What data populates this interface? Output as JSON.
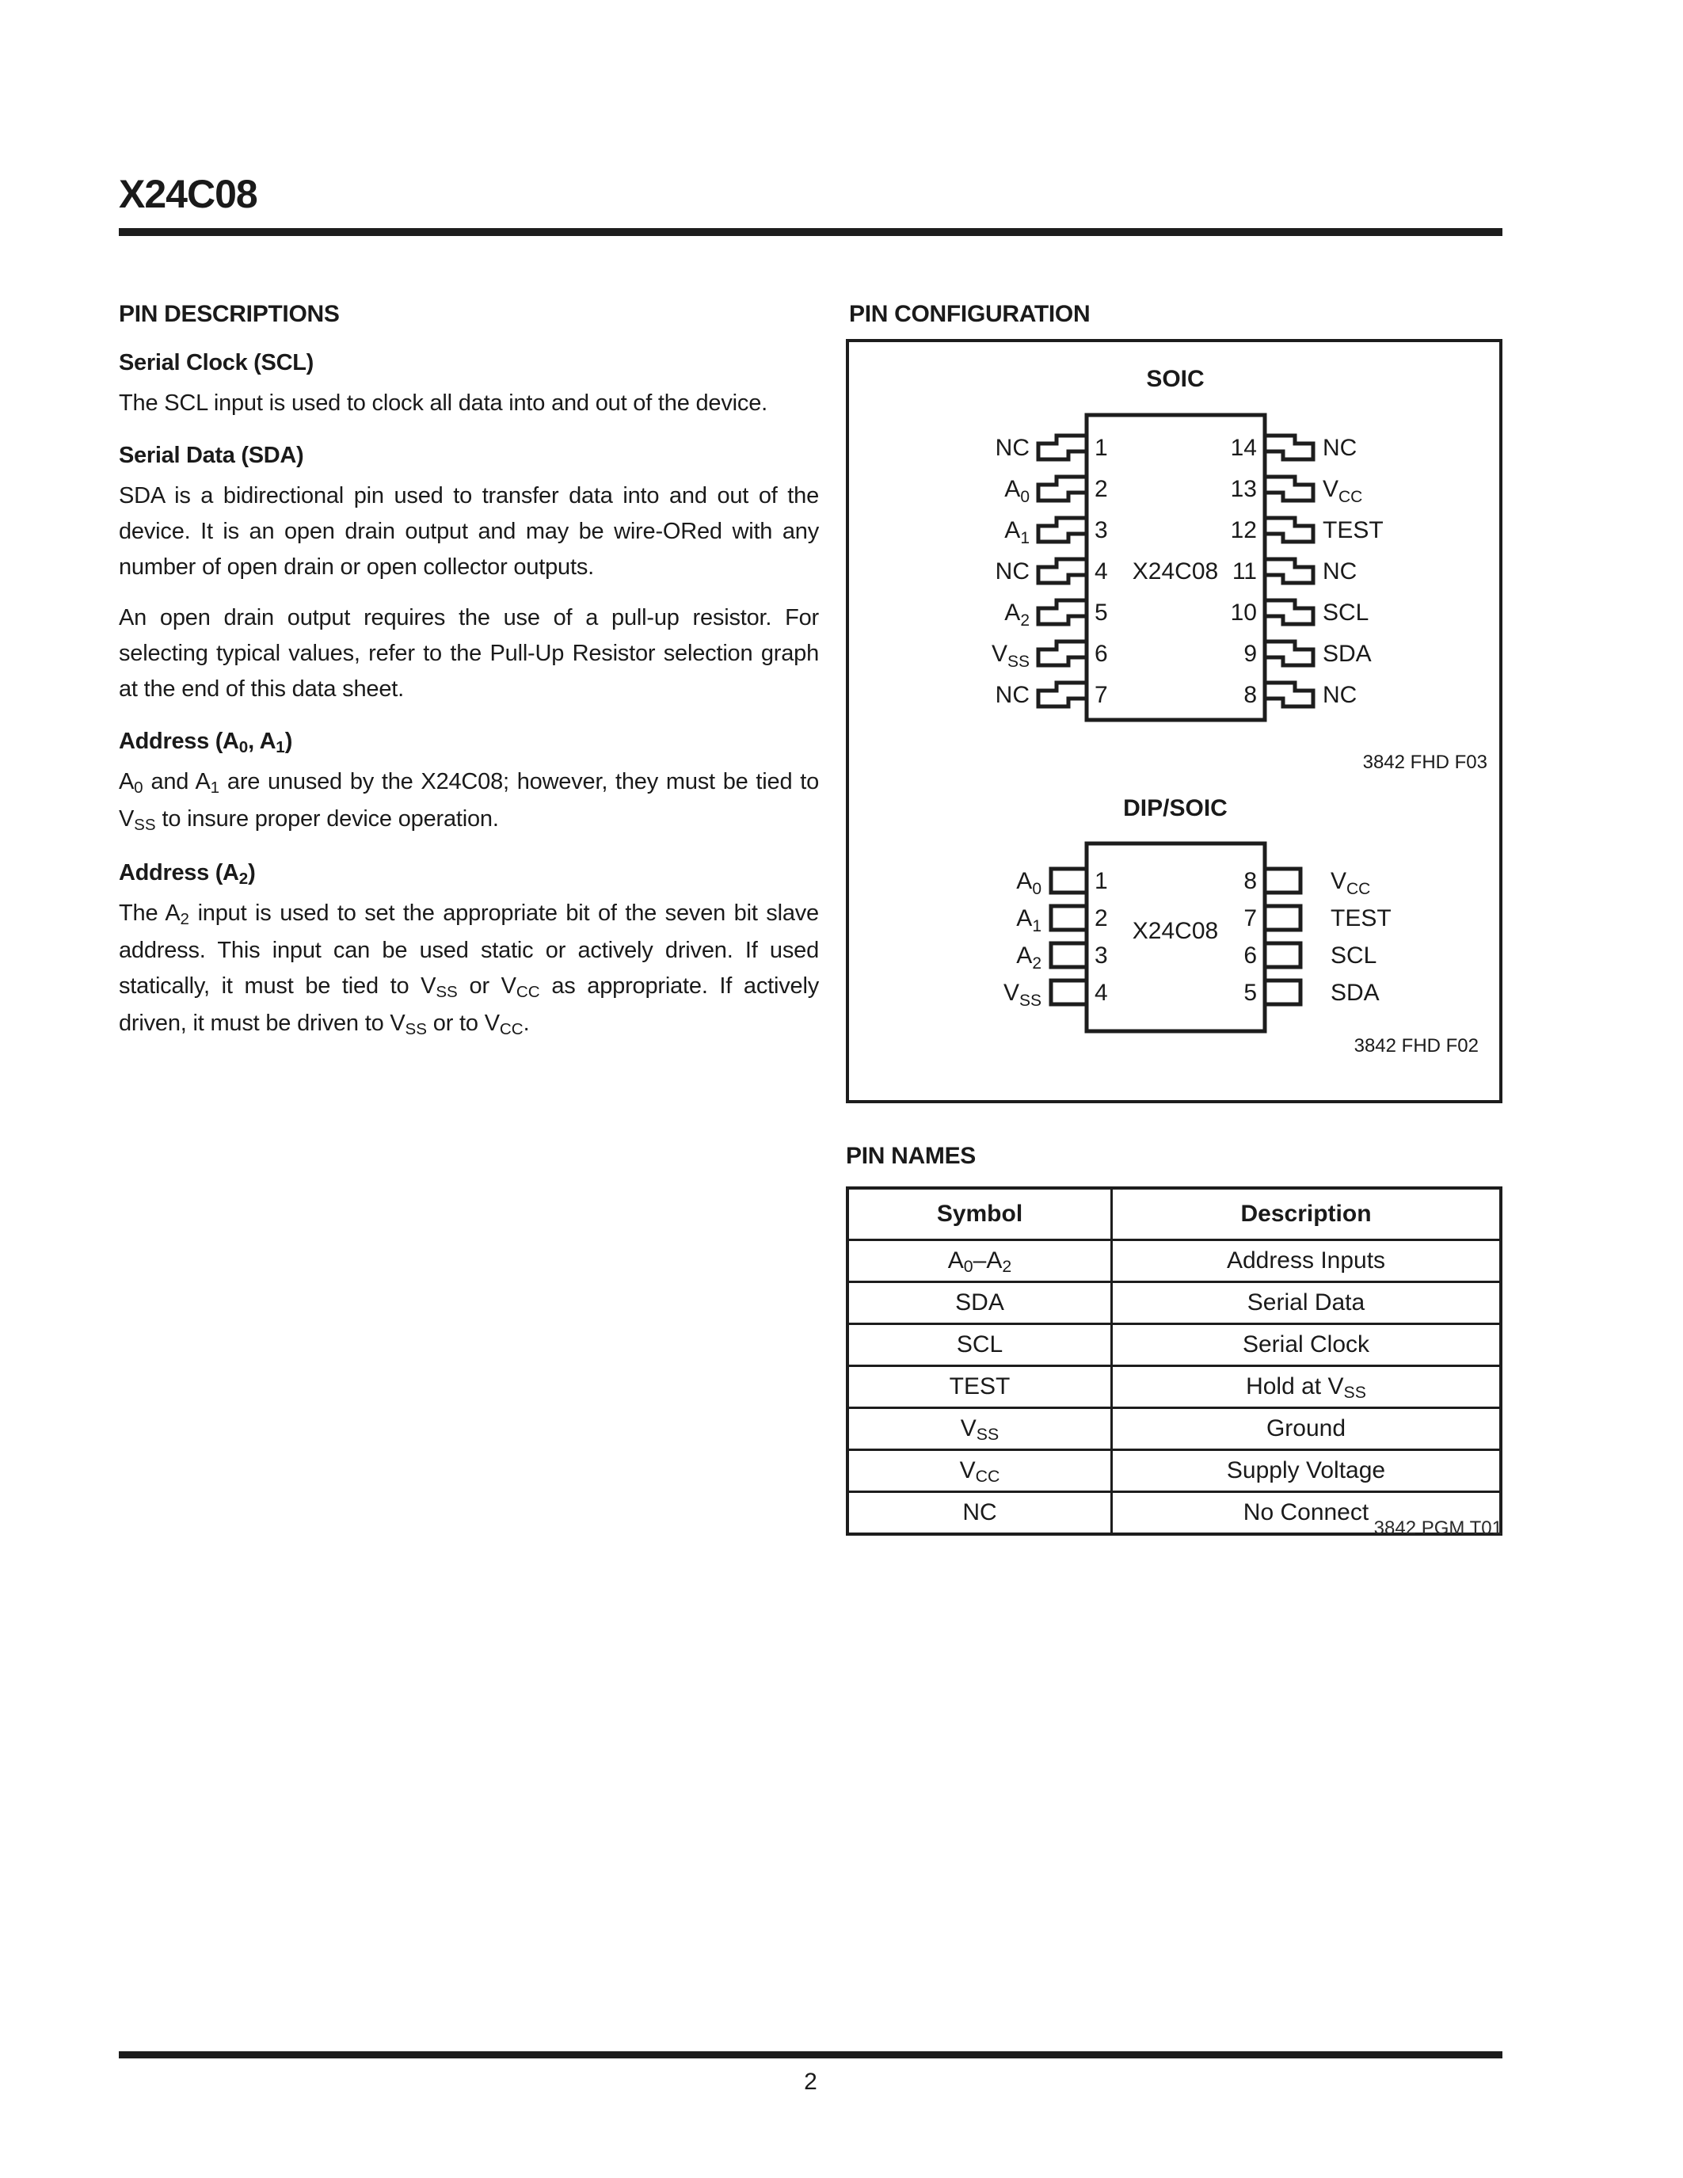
{
  "page": {
    "title": "X24C08",
    "page_number": "2"
  },
  "left_column": {
    "heading": "PIN DESCRIPTIONS",
    "sections": [
      {
        "heading": [
          {
            "t": "Serial Clock (SCL)"
          }
        ],
        "paragraphs": [
          [
            {
              "t": "The SCL input is used to clock all data into and out of the device."
            }
          ]
        ]
      },
      {
        "heading": [
          {
            "t": "Serial Data (SDA)"
          }
        ],
        "paragraphs": [
          [
            {
              "t": "SDA is a bidirectional pin used to transfer data into and out of the device. It is an open drain output and may be wire-ORed with any number of open drain or open collector outputs."
            }
          ],
          [
            {
              "t": "An open drain output requires the use of a pull-up resistor. For selecting typical values, refer to the Pull-Up Resistor selection graph at the end of this data sheet."
            }
          ]
        ]
      },
      {
        "heading": [
          {
            "t": "Address (A"
          },
          {
            "s": "0"
          },
          {
            "t": ", A"
          },
          {
            "s": "1"
          },
          {
            "t": ")"
          }
        ],
        "paragraphs": [
          [
            {
              "t": "A"
            },
            {
              "s": "0"
            },
            {
              "t": " and A"
            },
            {
              "s": "1"
            },
            {
              "t": " are unused by the X24C08; however, they must be tied to V"
            },
            {
              "s": "SS"
            },
            {
              "t": " to insure proper device operation."
            }
          ]
        ]
      },
      {
        "heading": [
          {
            "t": "Address (A"
          },
          {
            "s": "2"
          },
          {
            "t": ")"
          }
        ],
        "paragraphs": [
          [
            {
              "t": "The A"
            },
            {
              "s": "2"
            },
            {
              "t": " input is used to set the appropriate bit of the seven bit slave address. This input can be used static or actively driven. If used statically, it must be tied to V"
            },
            {
              "s": "SS"
            },
            {
              "t": " or V"
            },
            {
              "s": "CC"
            },
            {
              "t": " as appropriate. If actively driven, it must be driven to V"
            },
            {
              "s": "SS"
            },
            {
              "t": " or to V"
            },
            {
              "s": "CC"
            },
            {
              "t": "."
            }
          ]
        ]
      }
    ]
  },
  "pin_config": {
    "heading": "PIN CONFIGURATION",
    "soic": {
      "label": "SOIC",
      "chip_name": "X24C08",
      "caption": "3842 FHD F03",
      "left_pins": [
        {
          "num": "1",
          "base": "NC",
          "sub": ""
        },
        {
          "num": "2",
          "base": "A",
          "sub": "0"
        },
        {
          "num": "3",
          "base": "A",
          "sub": "1"
        },
        {
          "num": "4",
          "base": "NC",
          "sub": ""
        },
        {
          "num": "5",
          "base": "A",
          "sub": "2"
        },
        {
          "num": "6",
          "base": "V",
          "sub": "SS"
        },
        {
          "num": "7",
          "base": "NC",
          "sub": ""
        }
      ],
      "right_pins": [
        {
          "num": "14",
          "base": "NC",
          "sub": ""
        },
        {
          "num": "13",
          "base": "V",
          "sub": "CC"
        },
        {
          "num": "12",
          "base": "TEST",
          "sub": ""
        },
        {
          "num": "11",
          "base": "NC",
          "sub": ""
        },
        {
          "num": "10",
          "base": "SCL",
          "sub": ""
        },
        {
          "num": "9",
          "base": "SDA",
          "sub": ""
        },
        {
          "num": "8",
          "base": "NC",
          "sub": ""
        }
      ]
    },
    "dip": {
      "label": "DIP/SOIC",
      "chip_name": "X24C08",
      "caption": "3842 FHD F02",
      "left_pins": [
        {
          "num": "1",
          "base": "A",
          "sub": "0"
        },
        {
          "num": "2",
          "base": "A",
          "sub": "1"
        },
        {
          "num": "3",
          "base": "A",
          "sub": "2"
        },
        {
          "num": "4",
          "base": "V",
          "sub": "SS"
        }
      ],
      "right_pins": [
        {
          "num": "8",
          "base": "V",
          "sub": "CC"
        },
        {
          "num": "7",
          "base": "TEST",
          "sub": ""
        },
        {
          "num": "6",
          "base": "SCL",
          "sub": ""
        },
        {
          "num": "5",
          "base": "SDA",
          "sub": ""
        }
      ]
    }
  },
  "pin_names": {
    "heading": "PIN NAMES",
    "caption": "3842 PGM T01",
    "columns": [
      "Symbol",
      "Description"
    ],
    "rows": [
      {
        "symbol": [
          {
            "t": "A"
          },
          {
            "s": "0"
          },
          {
            "t": "–A"
          },
          {
            "s": "2"
          }
        ],
        "description": [
          {
            "t": "Address Inputs"
          }
        ]
      },
      {
        "symbol": [
          {
            "t": "SDA"
          }
        ],
        "description": [
          {
            "t": "Serial Data"
          }
        ]
      },
      {
        "symbol": [
          {
            "t": "SCL"
          }
        ],
        "description": [
          {
            "t": "Serial Clock"
          }
        ]
      },
      {
        "symbol": [
          {
            "t": "TEST"
          }
        ],
        "description": [
          {
            "t": "Hold at V"
          },
          {
            "s": "SS"
          }
        ]
      },
      {
        "symbol": [
          {
            "t": "V"
          },
          {
            "s": "SS"
          }
        ],
        "description": [
          {
            "t": "Ground"
          }
        ]
      },
      {
        "symbol": [
          {
            "t": "V"
          },
          {
            "s": "CC"
          }
        ],
        "description": [
          {
            "t": "Supply Voltage"
          }
        ]
      },
      {
        "symbol": [
          {
            "t": "NC"
          }
        ],
        "description": [
          {
            "t": "No Connect"
          }
        ]
      }
    ]
  }
}
